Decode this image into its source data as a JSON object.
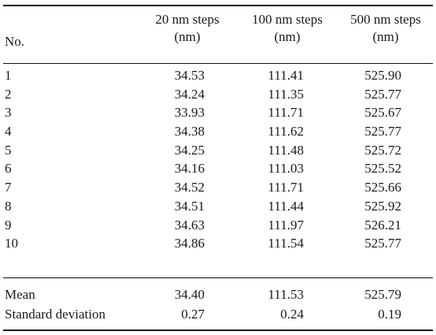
{
  "table": {
    "headers": {
      "no": "No.",
      "col1_line1": "20 nm steps",
      "col1_line2": "(nm)",
      "col2_line1": "100 nm steps",
      "col2_line2": "(nm)",
      "col3_line1": "500 nm steps",
      "col3_line2": "(nm)"
    },
    "rows": [
      {
        "no": "1",
        "c1": "34.53",
        "c2": "111.41",
        "c3": "525.90"
      },
      {
        "no": "2",
        "c1": "34.24",
        "c2": "111.35",
        "c3": "525.77"
      },
      {
        "no": "3",
        "c1": "33.93",
        "c2": "111.71",
        "c3": "525.67"
      },
      {
        "no": "4",
        "c1": "34.38",
        "c2": "111.62",
        "c3": "525.77"
      },
      {
        "no": "5",
        "c1": "34.25",
        "c2": "111.48",
        "c3": "525.72"
      },
      {
        "no": "6",
        "c1": "34.16",
        "c2": "111.03",
        "c3": "525.52"
      },
      {
        "no": "7",
        "c1": "34.52",
        "c2": "111.71",
        "c3": "525.66"
      },
      {
        "no": "8",
        "c1": "34.51",
        "c2": "111.44",
        "c3": "525.92"
      },
      {
        "no": "9",
        "c1": "34.63",
        "c2": "111.97",
        "c3": "526.21"
      },
      {
        "no": "10",
        "c1": "34.86",
        "c2": "111.54",
        "c3": "525.77"
      }
    ],
    "summary": [
      {
        "label": "Mean",
        "c1": "34.40",
        "c2": "111.53",
        "c3": "525.79"
      },
      {
        "label": "Standard deviation",
        "c1": "0.27",
        "c2": "0.24",
        "c3": "0.19"
      }
    ]
  }
}
